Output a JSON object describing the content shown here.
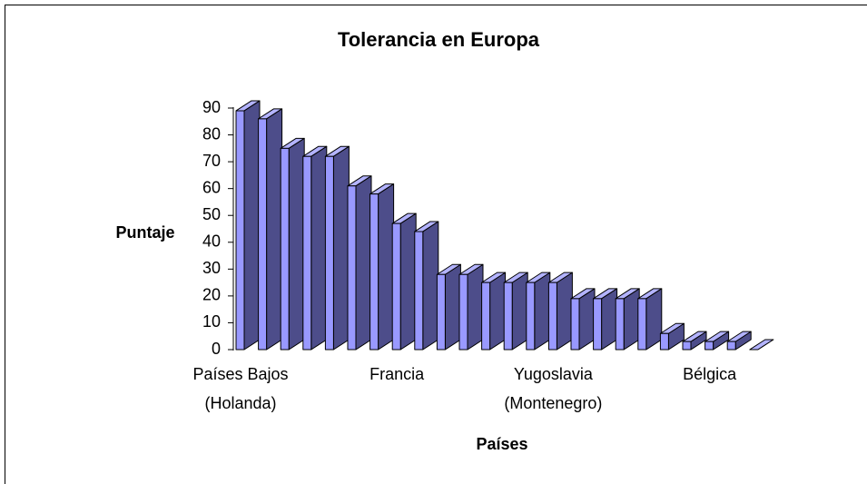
{
  "chart_data": {
    "type": "bar3d",
    "title": "Tolerancia en Europa",
    "ylabel": "Puntaje",
    "xlabel": "Países",
    "categories": [
      "Países Bajos\n(Holanda)",
      null,
      null,
      null,
      null,
      null,
      null,
      "Francia",
      null,
      null,
      null,
      null,
      null,
      null,
      "Yugoslavia\n(Montenegro)",
      null,
      null,
      null,
      null,
      null,
      null,
      "Bélgica",
      null,
      null
    ],
    "values": [
      89,
      86,
      75,
      72,
      72,
      61,
      58,
      47,
      44,
      28,
      28,
      25,
      25,
      25,
      25,
      19,
      19,
      19,
      19,
      6,
      3,
      3,
      3,
      0
    ],
    "color": "#9999ff",
    "side_color": "#4d4d8a",
    "top_color": "#b3b3ff",
    "ylim": [
      0,
      90
    ],
    "yticks": [
      0,
      10,
      20,
      30,
      40,
      50,
      60,
      70,
      80,
      90
    ]
  }
}
